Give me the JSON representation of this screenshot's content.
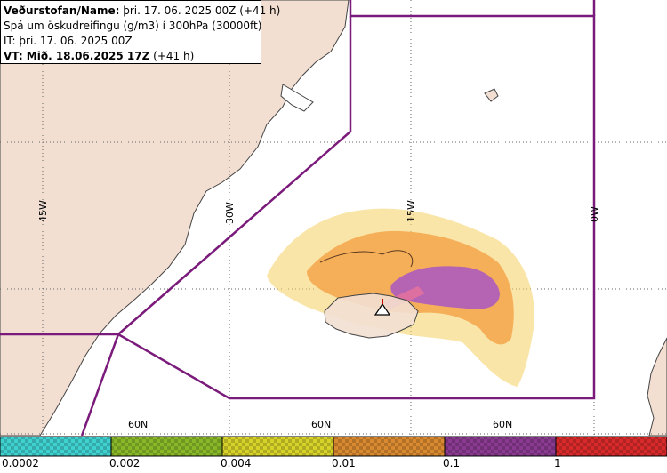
{
  "info": {
    "line1_label": "Veðurstofan/Name:",
    "line1_value": " þri. 17. 06. 2025 00Z (+41 h)",
    "line2": "Spá um öskudreifingu (g/m3) í 300hPa (30000ft)",
    "line3": "IT: þri. 17. 06. 2025 00Z",
    "line4_label": "VT: Mið. 18.06.2025 17Z",
    "line4_value": " (+41 h)"
  },
  "grid": {
    "lon_labels": [
      "45W",
      "30W",
      "15W",
      "0W"
    ],
    "lat_labels": [
      "60N",
      "60N",
      "60N"
    ]
  },
  "legend": {
    "bins": [
      {
        "color": "#3fd0d0",
        "label": "0.0002"
      },
      {
        "color": "#88b828",
        "label": "0.002"
      },
      {
        "color": "#d6d22a",
        "label": "0.004"
      },
      {
        "color": "#d98a30",
        "label": "0.01"
      },
      {
        "color": "#8a3a90",
        "label": "0.1"
      },
      {
        "color": "#d82a2a",
        "label": "1"
      }
    ]
  },
  "colors": {
    "land": "#f2dfd2",
    "boundary": "#7a1a7a",
    "plume_light": "#f5d060",
    "plume_orange": "#f5a850",
    "plume_purple": "#b060b8",
    "plume_core": "#e070a0"
  },
  "icons": [
    "volcano-icon"
  ]
}
